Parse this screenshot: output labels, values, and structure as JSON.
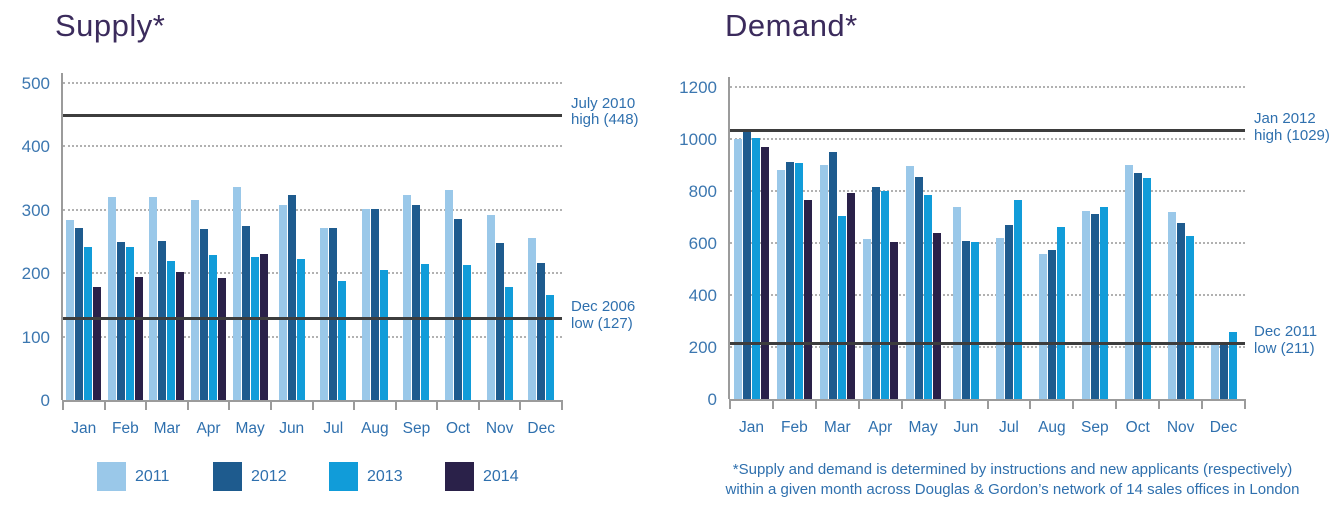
{
  "colors": {
    "title_text": "#3b2b5c",
    "blue_text": "#2f70ae",
    "y_tick_text": "#3c77b0",
    "axis_line": "#9b9b9b",
    "gridline": "#b1b1b1",
    "reference_line": "#3d3d3d",
    "series_2011": "#9ac8e9",
    "series_2012": "#1e5b8e",
    "series_2013": "#119cd9",
    "series_2014": "#2a2149"
  },
  "legend": {
    "items": [
      {
        "label": "2011",
        "color": "#9ac8e9"
      },
      {
        "label": "2012",
        "color": "#1e5b8e"
      },
      {
        "label": "2013",
        "color": "#119cd9"
      },
      {
        "label": "2014",
        "color": "#2a2149"
      }
    ]
  },
  "footnote": {
    "line1": "*Supply and demand is determined by instructions and new applicants (respectively)",
    "line2": "within a given month across Douglas & Gordon’s network of 14 sales offices in London"
  },
  "chart_data": [
    {
      "type": "bar",
      "title": "Supply*",
      "categories": [
        "Jan",
        "Feb",
        "Mar",
        "Apr",
        "May",
        "Jun",
        "Jul",
        "Aug",
        "Sep",
        "Oct",
        "Nov",
        "Dec"
      ],
      "series": [
        {
          "name": "2011",
          "color": "#9ac8e9",
          "values": [
            284,
            320,
            320,
            316,
            336,
            308,
            272,
            301,
            323,
            331,
            292,
            256
          ]
        },
        {
          "name": "2012",
          "color": "#1e5b8e",
          "values": [
            272,
            249,
            251,
            270,
            274,
            324,
            271,
            301,
            308,
            285,
            247,
            216
          ]
        },
        {
          "name": "2013",
          "color": "#119cd9",
          "values": [
            242,
            242,
            220,
            228,
            226,
            223,
            187,
            205,
            215,
            213,
            179,
            166
          ]
        },
        {
          "name": "2014",
          "color": "#2a2149",
          "values": [
            178,
            194,
            202,
            193,
            230,
            null,
            null,
            null,
            null,
            null,
            null,
            null
          ]
        }
      ],
      "ylim": [
        0,
        500
      ],
      "yticks": [
        0,
        100,
        200,
        300,
        400,
        500
      ],
      "grid": true,
      "legend_position": "bottom-left",
      "reference_lines": [
        {
          "value": 448,
          "label_line1": "July 2010",
          "label_line2": "high (448)"
        },
        {
          "value": 127,
          "label_line1": "Dec 2006",
          "label_line2": "low (127)"
        }
      ]
    },
    {
      "type": "bar",
      "title": "Demand*",
      "categories": [
        "Jan",
        "Feb",
        "Mar",
        "Apr",
        "May",
        "Jun",
        "Jul",
        "Aug",
        "Sep",
        "Oct",
        "Nov",
        "Dec"
      ],
      "series": [
        {
          "name": "2011",
          "color": "#9ac8e9",
          "values": [
            1000,
            882,
            900,
            617,
            896,
            740,
            620,
            558,
            724,
            901,
            718,
            211
          ]
        },
        {
          "name": "2012",
          "color": "#1e5b8e",
          "values": [
            1029,
            911,
            951,
            817,
            855,
            608,
            670,
            572,
            712,
            869,
            677,
            218
          ]
        },
        {
          "name": "2013",
          "color": "#119cd9",
          "values": [
            1003,
            906,
            704,
            799,
            784,
            605,
            765,
            663,
            740,
            851,
            628,
            257
          ]
        },
        {
          "name": "2014",
          "color": "#2a2149",
          "values": [
            968,
            765,
            792,
            603,
            640,
            null,
            null,
            null,
            null,
            null,
            null,
            null
          ]
        }
      ],
      "ylim": [
        0,
        1200
      ],
      "yticks": [
        0,
        200,
        400,
        600,
        800,
        1000,
        1200
      ],
      "grid": true,
      "reference_lines": [
        {
          "value": 1029,
          "label_line1": "Jan 2012",
          "label_line2": "high (1029)"
        },
        {
          "value": 211,
          "label_line1": "Dec 2011",
          "label_line2": "low (211)"
        }
      ]
    }
  ]
}
